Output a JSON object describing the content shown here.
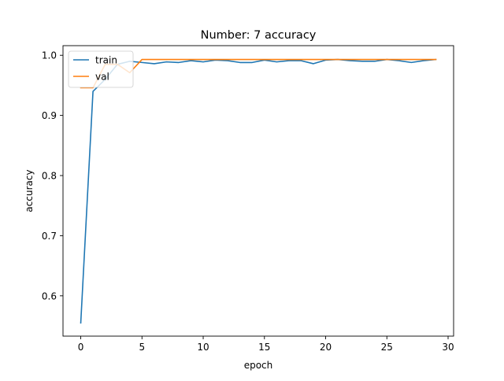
{
  "chart_data": {
    "type": "line",
    "title": "Number: 7 accuracy",
    "xlabel": "epoch",
    "ylabel": "accuracy",
    "xlim": [
      -1.45,
      30.45
    ],
    "ylim": [
      0.533,
      1.016
    ],
    "x_ticks": [
      0,
      5,
      10,
      15,
      20,
      25,
      30
    ],
    "y_ticks": [
      0.6,
      0.7,
      0.8,
      0.9,
      1.0
    ],
    "y_tick_labels": [
      "0.6",
      "0.7",
      "0.8",
      "0.9",
      "1.0"
    ],
    "grid": false,
    "legend_position": "top-left",
    "x": [
      0,
      1,
      2,
      3,
      4,
      5,
      6,
      7,
      8,
      9,
      10,
      11,
      12,
      13,
      14,
      15,
      16,
      17,
      18,
      19,
      20,
      21,
      22,
      23,
      24,
      25,
      26,
      27,
      28,
      29
    ],
    "series": [
      {
        "name": "train",
        "color": "#1f77b4",
        "values": [
          0.555,
          0.94,
          0.96,
          0.985,
          0.99,
          0.988,
          0.986,
          0.989,
          0.988,
          0.991,
          0.989,
          0.992,
          0.991,
          0.988,
          0.988,
          0.992,
          0.989,
          0.991,
          0.991,
          0.986,
          0.992,
          0.993,
          0.991,
          0.99,
          0.99,
          0.993,
          0.991,
          0.988,
          0.991,
          0.993
        ]
      },
      {
        "name": "val",
        "color": "#ff7f0e",
        "values": [
          0.946,
          0.946,
          0.985,
          0.985,
          0.971,
          0.993,
          0.993,
          0.993,
          0.993,
          0.993,
          0.993,
          0.993,
          0.993,
          0.993,
          0.993,
          0.993,
          0.993,
          0.993,
          0.993,
          0.993,
          0.993,
          0.993,
          0.993,
          0.993,
          0.993,
          0.993,
          0.993,
          0.993,
          0.993,
          0.993
        ]
      }
    ]
  }
}
